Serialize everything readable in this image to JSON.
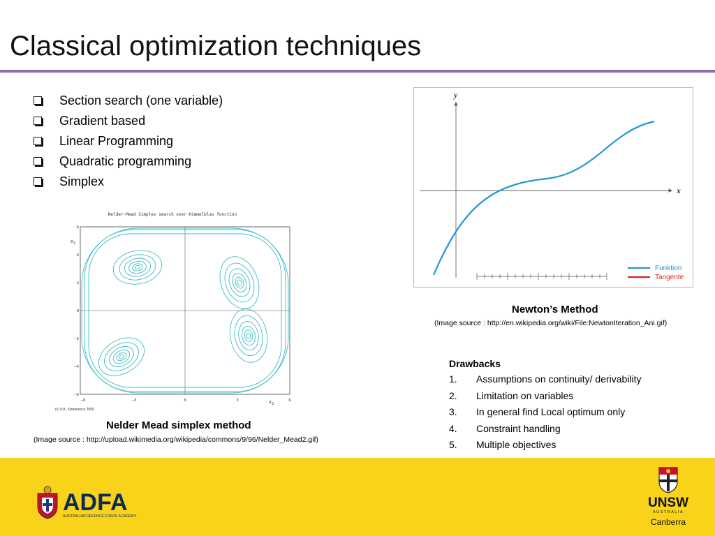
{
  "slide": {
    "title": "Classical optimization techniques",
    "accent_color": "#8d6cb2",
    "footer_color": "#f9d21a"
  },
  "bullets": [
    {
      "label": "Section search (one variable)"
    },
    {
      "label": "Gradient based"
    },
    {
      "label": "Linear Programming"
    },
    {
      "label": "Quadratic programming"
    },
    {
      "label": "Simplex"
    }
  ],
  "nelder_mead": {
    "plot_title": "Nelder-Mead Simplex search over Himmelblau function",
    "x_axis_label": "x",
    "x_axis_sub": "2",
    "y_axis_label": "x",
    "y_axis_sub": "1",
    "x_ticks": [
      "−6",
      "−3",
      "0",
      "3",
      "6"
    ],
    "y_ticks": [
      "6",
      "4",
      "2",
      "0",
      "−2",
      "−4",
      "−6"
    ],
    "credit": "(c) P.A. Simionescu 2006",
    "caption": "Nelder Mead simplex method",
    "source": "(Image source : http://upload.wikimedia.org/wikipedia/commons/9/96/Nelder_Mead2.gif)",
    "contour_color": "#3bbcc8"
  },
  "newton": {
    "y_label": "y",
    "x_label": "x",
    "legend": [
      {
        "label": "Funktion",
        "color": "#2196d8"
      },
      {
        "label": "Tangente",
        "color": "#e21b1b"
      }
    ],
    "caption": "Newton’s Method",
    "source": "(Image source : http://en.wikipedia.org/wiki/File:NewtonIteration_Ani.gif)"
  },
  "drawbacks": {
    "heading": "Drawbacks",
    "items": [
      {
        "num": "1.",
        "text": "Assumptions on continuity/ derivability"
      },
      {
        "num": "2.",
        "text": "Limitation on variables"
      },
      {
        "num": "3.",
        "text": "In general find Local optimum only"
      },
      {
        "num": "4.",
        "text": "Constraint handling"
      },
      {
        "num": "5.",
        "text": "Multiple objectives"
      }
    ]
  },
  "logos": {
    "adfa_name": "ADFA",
    "adfa_full": "AUSTRALIAN DEFENCE FORCE ACADEMY",
    "unsw_name": "UNSW",
    "unsw_country": "AUSTRALIA",
    "unsw_campus": "Canberra"
  }
}
